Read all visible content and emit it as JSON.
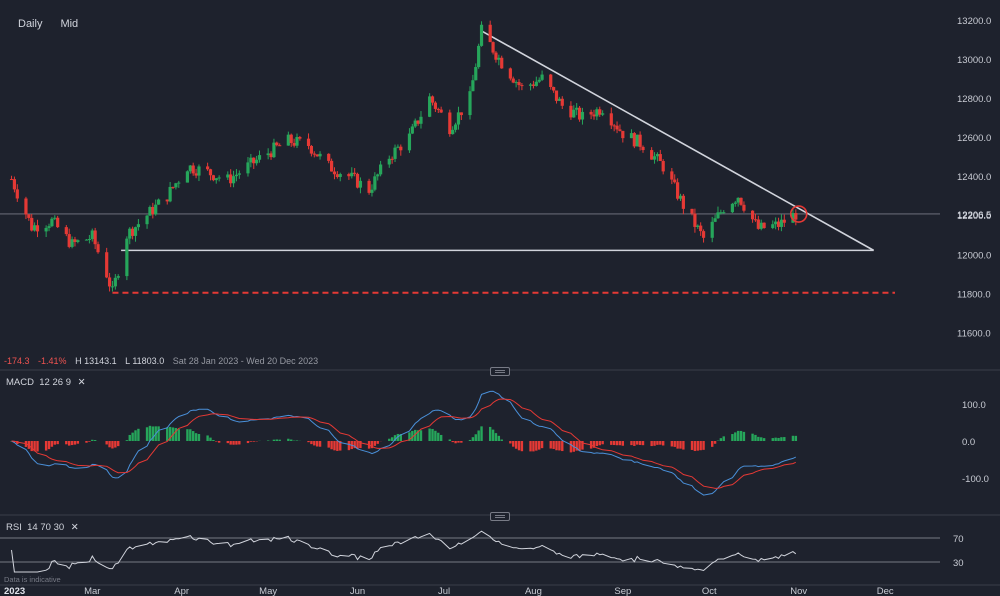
{
  "toolbar": {
    "buttons": [
      "Daily",
      "Mid"
    ]
  },
  "price_panel": {
    "stats": {
      "change": "-174.3",
      "change_pct": "-1.41%",
      "high": "H 13143.1",
      "low": "L 11803.0",
      "range": "Sat 28 Jan 2023 - Wed 20 Dec 2023"
    },
    "current_price": 12206.5,
    "current_label": "12206.5",
    "support_line": 11803,
    "yticks": [
      11600,
      11800,
      12000,
      12200,
      12400,
      12600,
      12800,
      13000,
      13200
    ],
    "ytick_labels": [
      "11600.0",
      "11800.0",
      "12000.0",
      "12200.0",
      "12400.0",
      "12600.0",
      "12800.0",
      "13000.0",
      "13200.0"
    ]
  },
  "macd_panel": {
    "title": "MACD",
    "params": [
      "12",
      "26",
      "9"
    ],
    "yticks": [
      100,
      0,
      -100
    ],
    "ytick_labels": [
      "100.0",
      "0.0",
      "-100.0"
    ]
  },
  "rsi_panel": {
    "title": "RSI",
    "params": [
      "14",
      "70",
      "30"
    ],
    "yticks": [
      70,
      30
    ],
    "ytick_labels": [
      "70",
      "30"
    ]
  },
  "x_axis": {
    "year_label": "2023",
    "months": [
      {
        "label": "Mar",
        "date": "2023-03-01"
      },
      {
        "label": "Apr",
        "date": "2023-04-01"
      },
      {
        "label": "May",
        "date": "2023-05-01"
      },
      {
        "label": "Jun",
        "date": "2023-06-01"
      },
      {
        "label": "Jul",
        "date": "2023-07-01"
      },
      {
        "label": "Aug",
        "date": "2023-08-01"
      },
      {
        "label": "Sep",
        "date": "2023-09-01"
      },
      {
        "label": "Oct",
        "date": "2023-10-01"
      },
      {
        "label": "Nov",
        "date": "2023-11-01"
      },
      {
        "label": "Dec",
        "date": "2023-12-01"
      }
    ]
  },
  "disclaimer": "Data is indicative",
  "colors": {
    "up": "#26a65b",
    "down": "#e53935",
    "trendline": "#d1d4dc",
    "support": "#e53935",
    "macd": "#4a90d9",
    "signal": "#e53935",
    "rsi": "#d1d4dc",
    "background": "#1e222d"
  },
  "chart_data": {
    "type": "candlestick",
    "x_type": "date",
    "x_range": [
      "2023-01-28",
      "2023-12-20"
    ],
    "ylim": [
      11500,
      13250
    ],
    "series": [
      {
        "points": [
          [
            "2023-02-01",
            12385
          ],
          [
            "2023-02-08",
            12140
          ],
          [
            "2023-02-15",
            12170
          ],
          [
            "2023-02-22",
            12050
          ],
          [
            "2023-03-01",
            12090
          ],
          [
            "2023-03-06",
            11900
          ],
          [
            "2023-03-08",
            11803
          ],
          [
            "2023-03-13",
            12100
          ],
          [
            "2023-03-20",
            12200
          ],
          [
            "2023-03-27",
            12300
          ],
          [
            "2023-04-03",
            12450
          ],
          [
            "2023-04-10",
            12420
          ],
          [
            "2023-04-17",
            12380
          ],
          [
            "2023-04-24",
            12450
          ],
          [
            "2023-05-01",
            12520
          ],
          [
            "2023-05-08",
            12580
          ],
          [
            "2023-05-15",
            12560
          ],
          [
            "2023-05-22",
            12450
          ],
          [
            "2023-05-29",
            12400
          ],
          [
            "2023-06-05",
            12330
          ],
          [
            "2023-06-12",
            12500
          ],
          [
            "2023-06-19",
            12600
          ],
          [
            "2023-06-26",
            12800
          ],
          [
            "2023-07-03",
            12650
          ],
          [
            "2023-07-10",
            12800
          ],
          [
            "2023-07-14",
            13143
          ],
          [
            "2023-07-21",
            12980
          ],
          [
            "2023-07-28",
            12850
          ],
          [
            "2023-08-04",
            12900
          ],
          [
            "2023-08-11",
            12760
          ],
          [
            "2023-08-18",
            12700
          ],
          [
            "2023-08-25",
            12750
          ],
          [
            "2023-09-01",
            12620
          ],
          [
            "2023-09-08",
            12560
          ],
          [
            "2023-09-15",
            12450
          ],
          [
            "2023-09-22",
            12250
          ],
          [
            "2023-09-29",
            12080
          ],
          [
            "2023-10-06",
            12240
          ],
          [
            "2023-10-11",
            12300
          ],
          [
            "2023-10-18",
            12130
          ],
          [
            "2023-10-25",
            12150
          ],
          [
            "2023-10-31",
            12206
          ]
        ]
      }
    ],
    "trendlines": [
      {
        "from": [
          "2023-07-14",
          13143
        ],
        "to": [
          "2023-11-27",
          12020
        ]
      },
      {
        "from": [
          "2023-03-11",
          12020
        ],
        "to": [
          "2023-11-27",
          12020
        ]
      }
    ],
    "horizontal_lines": [
      {
        "y": 11803,
        "style": "dashed",
        "from": "2023-03-08"
      }
    ],
    "annotations": [
      {
        "type": "circle",
        "at": [
          "2023-11-01",
          12206
        ]
      }
    ]
  }
}
